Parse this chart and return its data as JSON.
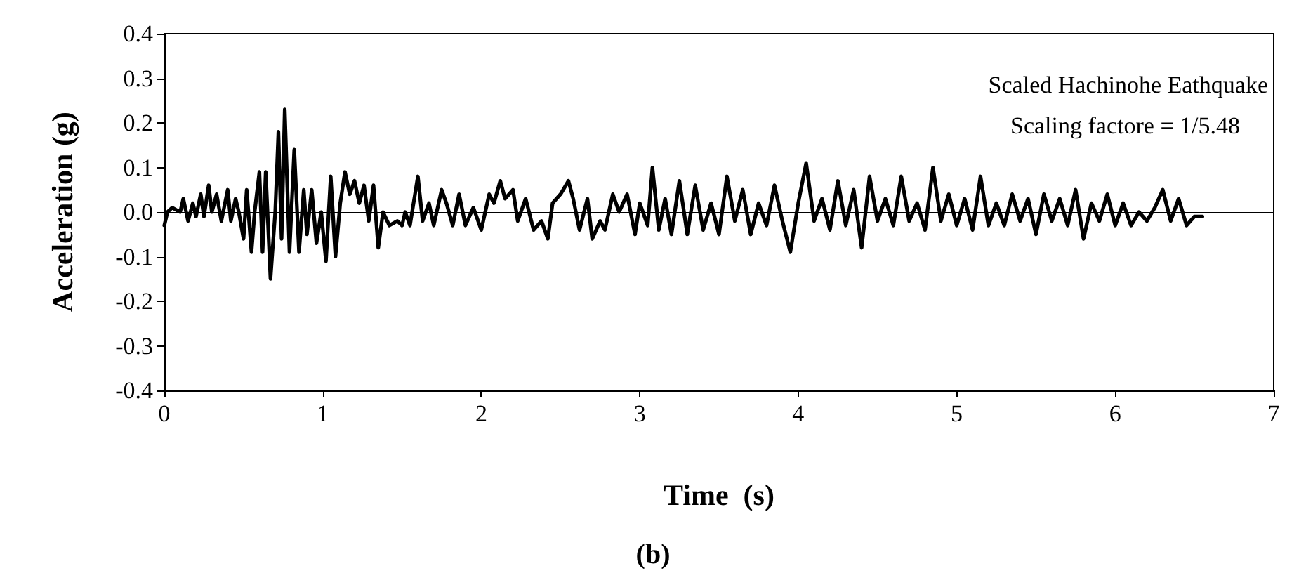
{
  "chart_data": {
    "type": "line",
    "xlabel": "Time  (s)",
    "ylabel": "Acceleration (g)",
    "annotations": [
      "Scaled Hachinohe Eathquake",
      "Scaling factore = 1/5.48",
      "(b)"
    ],
    "x": [
      0,
      0.02,
      0.05,
      0.1,
      0.12,
      0.15,
      0.18,
      0.2,
      0.23,
      0.25,
      0.28,
      0.3,
      0.33,
      0.36,
      0.4,
      0.42,
      0.45,
      0.47,
      0.5,
      0.52,
      0.55,
      0.57,
      0.6,
      0.62,
      0.64,
      0.67,
      0.7,
      0.72,
      0.74,
      0.76,
      0.79,
      0.82,
      0.85,
      0.88,
      0.9,
      0.93,
      0.96,
      0.99,
      1.02,
      1.05,
      1.08,
      1.11,
      1.14,
      1.17,
      1.2,
      1.23,
      1.26,
      1.29,
      1.32,
      1.35,
      1.38,
      1.42,
      1.47,
      1.5,
      1.52,
      1.55,
      1.6,
      1.63,
      1.67,
      1.7,
      1.75,
      1.78,
      1.82,
      1.86,
      1.9,
      1.95,
      2.0,
      2.05,
      2.08,
      2.12,
      2.15,
      2.2,
      2.23,
      2.28,
      2.33,
      2.38,
      2.42,
      2.45,
      2.5,
      2.55,
      2.58,
      2.62,
      2.67,
      2.7,
      2.75,
      2.78,
      2.83,
      2.87,
      2.92,
      2.97,
      3.0,
      3.05,
      3.08,
      3.12,
      3.16,
      3.2,
      3.25,
      3.3,
      3.35,
      3.4,
      3.45,
      3.5,
      3.55,
      3.6,
      3.65,
      3.7,
      3.75,
      3.8,
      3.85,
      3.9,
      3.95,
      4.0,
      4.05,
      4.1,
      4.15,
      4.2,
      4.25,
      4.3,
      4.35,
      4.4,
      4.45,
      4.5,
      4.55,
      4.6,
      4.65,
      4.7,
      4.75,
      4.8,
      4.85,
      4.9,
      4.95,
      5.0,
      5.05,
      5.1,
      5.15,
      5.2,
      5.25,
      5.3,
      5.35,
      5.4,
      5.45,
      5.5,
      5.55,
      5.6,
      5.65,
      5.7,
      5.75,
      5.8,
      5.85,
      5.9,
      5.95,
      6.0,
      6.05,
      6.1,
      6.15,
      6.2,
      6.25,
      6.3,
      6.35,
      6.4,
      6.45,
      6.5,
      6.55
    ],
    "series": [
      {
        "color": "#000000",
        "values": [
          -0.03,
          0.0,
          0.01,
          0.0,
          0.03,
          -0.02,
          0.02,
          -0.01,
          0.04,
          -0.01,
          0.06,
          0.0,
          0.04,
          -0.02,
          0.05,
          -0.02,
          0.03,
          0.0,
          -0.06,
          0.05,
          -0.09,
          0.0,
          0.09,
          -0.09,
          0.09,
          -0.15,
          0.0,
          0.18,
          -0.06,
          0.23,
          -0.09,
          0.14,
          -0.09,
          0.05,
          -0.05,
          0.05,
          -0.07,
          0.0,
          -0.11,
          0.08,
          -0.1,
          0.02,
          0.09,
          0.04,
          0.07,
          0.02,
          0.06,
          -0.02,
          0.06,
          -0.08,
          0.0,
          -0.03,
          -0.02,
          -0.03,
          0.0,
          -0.03,
          0.08,
          -0.02,
          0.02,
          -0.03,
          0.05,
          0.02,
          -0.03,
          0.04,
          -0.03,
          0.01,
          -0.04,
          0.04,
          0.02,
          0.07,
          0.03,
          0.05,
          -0.02,
          0.03,
          -0.04,
          -0.02,
          -0.06,
          0.02,
          0.04,
          0.07,
          0.03,
          -0.04,
          0.03,
          -0.06,
          -0.02,
          -0.04,
          0.04,
          0.0,
          0.04,
          -0.05,
          0.02,
          -0.03,
          0.1,
          -0.04,
          0.03,
          -0.05,
          0.07,
          -0.05,
          0.06,
          -0.04,
          0.02,
          -0.05,
          0.08,
          -0.02,
          0.05,
          -0.05,
          0.02,
          -0.03,
          0.06,
          -0.02,
          -0.09,
          0.02,
          0.11,
          -0.02,
          0.03,
          -0.04,
          0.07,
          -0.03,
          0.05,
          -0.08,
          0.08,
          -0.02,
          0.03,
          -0.03,
          0.08,
          -0.02,
          0.02,
          -0.04,
          0.1,
          -0.02,
          0.04,
          -0.03,
          0.03,
          -0.04,
          0.08,
          -0.03,
          0.02,
          -0.03,
          0.04,
          -0.02,
          0.03,
          -0.05,
          0.04,
          -0.02,
          0.03,
          -0.03,
          0.05,
          -0.06,
          0.02,
          -0.02,
          0.04,
          -0.03,
          0.02,
          -0.03,
          0.0,
          -0.02,
          0.01,
          0.05,
          -0.02,
          0.03,
          -0.03,
          -0.01,
          -0.01
        ]
      }
    ],
    "xlim": [
      0,
      7
    ],
    "xticks": [
      0,
      1,
      2,
      3,
      4,
      5,
      6,
      7
    ],
    "ylim": [
      -0.4,
      0.4
    ],
    "yticks": [
      {
        "value": -0.4,
        "label": "-0.4"
      },
      {
        "value": -0.3,
        "label": "-0.3"
      },
      {
        "value": -0.2,
        "label": "-0.2"
      },
      {
        "value": -0.1,
        "label": "-0.1"
      },
      {
        "value": 0,
        "label": "0.0"
      },
      {
        "value": 0.1,
        "label": "0.1"
      },
      {
        "value": 0.2,
        "label": "0.2"
      },
      {
        "value": 0.3,
        "label": "0.3"
      },
      {
        "value": 0.4,
        "label": "0.4"
      }
    ],
    "ref_lines": [
      {
        "axis": "y",
        "value": 0,
        "color": "#000000"
      }
    ],
    "grid": false,
    "marker": "none",
    "line_style": "solid"
  }
}
